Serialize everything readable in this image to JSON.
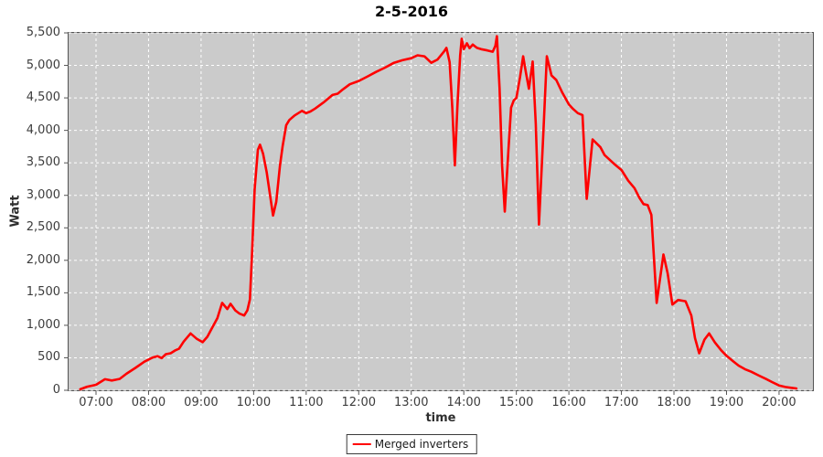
{
  "colors": {
    "page_bg": "#ffffff",
    "plot_bg": "#cbcbcb",
    "grid_line": "#ffffff",
    "plot_border": "#545454",
    "series_red": "#ff0000",
    "tick_label": "#3c3c3c"
  },
  "chart_data": {
    "type": "line",
    "title": "2-5-2016",
    "xlabel": "time",
    "ylabel": "Watt",
    "grid": true,
    "x_axis": {
      "tick_hours": [
        7,
        8,
        9,
        10,
        11,
        12,
        13,
        14,
        15,
        16,
        17,
        18,
        19,
        20
      ],
      "tick_labels": [
        "07:00",
        "08:00",
        "09:00",
        "10:00",
        "11:00",
        "12:00",
        "13:00",
        "14:00",
        "15:00",
        "16:00",
        "17:00",
        "18:00",
        "19:00",
        "20:00"
      ],
      "range_hours": [
        6.478,
        20.645
      ]
    },
    "y_axis": {
      "tick_values": [
        0,
        500,
        1000,
        1500,
        2000,
        2500,
        3000,
        3500,
        4000,
        4500,
        5000,
        5500
      ],
      "tick_labels": [
        "0",
        "500",
        "1,000",
        "1,500",
        "2,000",
        "2,500",
        "3,000",
        "3,500",
        "4,000",
        "4,500",
        "5,000",
        "5,500"
      ],
      "range": [
        0,
        5500
      ]
    },
    "legend": {
      "position": "bottom-center",
      "entries": [
        {
          "label": "Merged inverters",
          "color": "#ff0000"
        }
      ]
    },
    "series": [
      {
        "name": "Merged inverters",
        "color": "#ff0000",
        "points_hour_watt": [
          [
            6.7,
            15
          ],
          [
            6.83,
            55
          ],
          [
            7.0,
            85
          ],
          [
            7.17,
            170
          ],
          [
            7.3,
            150
          ],
          [
            7.45,
            175
          ],
          [
            7.58,
            255
          ],
          [
            7.75,
            345
          ],
          [
            7.92,
            440
          ],
          [
            8.08,
            505
          ],
          [
            8.17,
            525
          ],
          [
            8.25,
            495
          ],
          [
            8.33,
            555
          ],
          [
            8.42,
            570
          ],
          [
            8.5,
            610
          ],
          [
            8.58,
            640
          ],
          [
            8.67,
            750
          ],
          [
            8.8,
            875
          ],
          [
            8.92,
            790
          ],
          [
            9.03,
            740
          ],
          [
            9.12,
            825
          ],
          [
            9.2,
            945
          ],
          [
            9.31,
            1110
          ],
          [
            9.4,
            1345
          ],
          [
            9.5,
            1250
          ],
          [
            9.56,
            1330
          ],
          [
            9.65,
            1230
          ],
          [
            9.73,
            1180
          ],
          [
            9.82,
            1150
          ],
          [
            9.88,
            1230
          ],
          [
            9.93,
            1400
          ],
          [
            9.97,
            2100
          ],
          [
            10.02,
            3100
          ],
          [
            10.08,
            3700
          ],
          [
            10.12,
            3780
          ],
          [
            10.18,
            3640
          ],
          [
            10.25,
            3350
          ],
          [
            10.37,
            2690
          ],
          [
            10.43,
            2900
          ],
          [
            10.5,
            3450
          ],
          [
            10.55,
            3750
          ],
          [
            10.62,
            4080
          ],
          [
            10.68,
            4160
          ],
          [
            10.78,
            4230
          ],
          [
            10.92,
            4300
          ],
          [
            11.0,
            4265
          ],
          [
            11.08,
            4290
          ],
          [
            11.17,
            4335
          ],
          [
            11.33,
            4430
          ],
          [
            11.5,
            4545
          ],
          [
            11.6,
            4565
          ],
          [
            11.7,
            4630
          ],
          [
            11.83,
            4710
          ],
          [
            12.0,
            4760
          ],
          [
            12.17,
            4830
          ],
          [
            12.33,
            4900
          ],
          [
            12.5,
            4965
          ],
          [
            12.67,
            5040
          ],
          [
            12.83,
            5080
          ],
          [
            13.0,
            5110
          ],
          [
            13.12,
            5155
          ],
          [
            13.25,
            5140
          ],
          [
            13.38,
            5040
          ],
          [
            13.5,
            5090
          ],
          [
            13.62,
            5210
          ],
          [
            13.67,
            5270
          ],
          [
            13.73,
            5050
          ],
          [
            13.78,
            4350
          ],
          [
            13.83,
            3460
          ],
          [
            13.88,
            4400
          ],
          [
            13.93,
            5150
          ],
          [
            13.96,
            5410
          ],
          [
            14.0,
            5250
          ],
          [
            14.06,
            5340
          ],
          [
            14.11,
            5265
          ],
          [
            14.17,
            5320
          ],
          [
            14.25,
            5270
          ],
          [
            14.33,
            5250
          ],
          [
            14.45,
            5230
          ],
          [
            14.55,
            5210
          ],
          [
            14.6,
            5300
          ],
          [
            14.63,
            5450
          ],
          [
            14.68,
            4650
          ],
          [
            14.73,
            3450
          ],
          [
            14.78,
            2750
          ],
          [
            14.85,
            3700
          ],
          [
            14.9,
            4350
          ],
          [
            14.95,
            4460
          ],
          [
            15.0,
            4500
          ],
          [
            15.07,
            4820
          ],
          [
            15.13,
            5140
          ],
          [
            15.18,
            4900
          ],
          [
            15.24,
            4640
          ],
          [
            15.31,
            5060
          ],
          [
            15.37,
            4100
          ],
          [
            15.43,
            2550
          ],
          [
            15.51,
            3900
          ],
          [
            15.58,
            5140
          ],
          [
            15.67,
            4845
          ],
          [
            15.76,
            4775
          ],
          [
            15.87,
            4590
          ],
          [
            16.0,
            4400
          ],
          [
            16.08,
            4330
          ],
          [
            16.17,
            4265
          ],
          [
            16.26,
            4235
          ],
          [
            16.34,
            2945
          ],
          [
            16.45,
            3860
          ],
          [
            16.6,
            3740
          ],
          [
            16.68,
            3620
          ],
          [
            16.76,
            3560
          ],
          [
            16.86,
            3485
          ],
          [
            17.0,
            3390
          ],
          [
            17.13,
            3225
          ],
          [
            17.25,
            3110
          ],
          [
            17.34,
            2965
          ],
          [
            17.42,
            2865
          ],
          [
            17.5,
            2850
          ],
          [
            17.57,
            2700
          ],
          [
            17.67,
            1345
          ],
          [
            17.8,
            2090
          ],
          [
            17.88,
            1800
          ],
          [
            17.97,
            1320
          ],
          [
            18.08,
            1390
          ],
          [
            18.22,
            1370
          ],
          [
            18.33,
            1150
          ],
          [
            18.4,
            805
          ],
          [
            18.48,
            570
          ],
          [
            18.58,
            780
          ],
          [
            18.67,
            875
          ],
          [
            18.78,
            735
          ],
          [
            18.9,
            615
          ],
          [
            19.0,
            530
          ],
          [
            19.12,
            450
          ],
          [
            19.23,
            380
          ],
          [
            19.35,
            325
          ],
          [
            19.47,
            285
          ],
          [
            19.62,
            225
          ],
          [
            19.75,
            175
          ],
          [
            19.87,
            125
          ],
          [
            20.0,
            75
          ],
          [
            20.12,
            50
          ],
          [
            20.23,
            38
          ],
          [
            20.33,
            28
          ]
        ]
      }
    ]
  }
}
